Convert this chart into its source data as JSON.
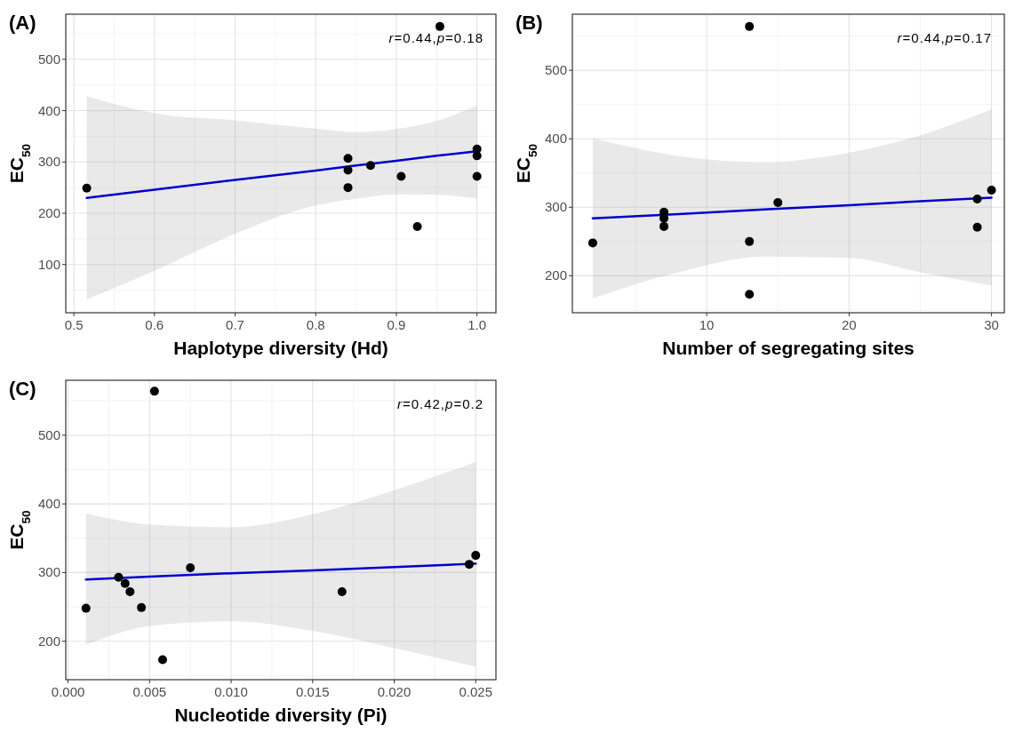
{
  "chart_data": [
    {
      "type": "scatter",
      "title": "(A)",
      "xlabel": "Haplotype diversity (Hd)",
      "ylabel": "EC$_{50}$",
      "annotations": [
        "r=0.44,p=0.18"
      ],
      "xlim": [
        0.49,
        1.0235
      ],
      "xticks": [
        0.5,
        0.6,
        0.7,
        0.8,
        0.9,
        {
          "value": 1.0,
          "label": "1.0"
        }
      ],
      "ylim": [
        6,
        588
      ],
      "yticks": [
        100,
        200,
        300,
        400,
        500
      ],
      "grid": true,
      "series": [
        {
          "marker": "circle",
          "color": "#000000",
          "x": [
            0.516,
            0.84,
            0.84,
            0.84,
            0.868,
            0.906,
            0.926,
            0.954,
            1.0,
            1.0,
            1.0
          ],
          "values": [
            249,
            307,
            284,
            250,
            293,
            272,
            174,
            564,
            325,
            312,
            272
          ]
        },
        {
          "type": "line",
          "color": "#0000cc",
          "x": [
            0.516,
            0.6,
            0.7,
            0.8,
            0.85,
            0.9,
            0.95,
            1.0
          ],
          "values": [
            230,
            246,
            265,
            283,
            293,
            302,
            312,
            321
          ],
          "lower": [
            32,
            88,
            160,
            215,
            228,
            237,
            236,
            229
          ],
          "upper": [
            428,
            395,
            381,
            365,
            358,
            364,
            380,
            410
          ]
        }
      ]
    },
    {
      "type": "scatter",
      "title": "(B)",
      "xlabel": "Number of segregating sites",
      "ylabel": "EC$_{50}$",
      "annotations": [
        "r=0.44,p=0.17"
      ],
      "xlim": [
        0.57,
        30.9
      ],
      "xticks": [
        10,
        20,
        30
      ],
      "ylim": [
        146,
        582
      ],
      "yticks": [
        200,
        300,
        400,
        500
      ],
      "grid": true,
      "series": [
        {
          "marker": "circle",
          "color": "#000000",
          "x": [
            2,
            7,
            7,
            7,
            13,
            13,
            13,
            15,
            29,
            29,
            30
          ],
          "values": [
            248,
            293,
            284,
            272,
            564,
            250,
            173,
            307,
            312,
            271,
            325
          ]
        },
        {
          "type": "line",
          "color": "#0000cc",
          "x": [
            2,
            8,
            14,
            20,
            25,
            30
          ],
          "values": [
            284,
            290,
            297,
            303,
            309,
            314
          ],
          "lower": [
            167,
            205,
            228,
            226,
            205,
            186
          ],
          "upper": [
            401,
            375,
            366,
            380,
            405,
            443
          ]
        }
      ]
    },
    {
      "type": "scatter",
      "title": "(C)",
      "xlabel": "Nucleotide diversity (Pi)",
      "ylabel": "EC$_{50}$",
      "annotations": [
        "r=0.42,p=0.2"
      ],
      "xlim": [
        -0.00014,
        0.02624
      ],
      "xticks": [
        {
          "value": 0,
          "label": "0.000"
        },
        0.005,
        {
          "value": 0.01,
          "label": "0.010"
        },
        0.015,
        {
          "value": 0.02,
          "label": "0.020"
        },
        0.025
      ],
      "ylim": [
        144,
        580
      ],
      "yticks": [
        200,
        300,
        400,
        500
      ],
      "grid": true,
      "series": [
        {
          "marker": "circle",
          "color": "#000000",
          "x": [
            0.0011,
            0.0031,
            0.0035,
            0.0038,
            0.0045,
            0.0053,
            0.0058,
            0.0075,
            0.0168,
            0.0246,
            0.025
          ],
          "values": [
            248,
            293,
            284,
            272,
            249,
            564,
            173,
            307,
            272,
            312,
            325
          ]
        },
        {
          "type": "line",
          "color": "#0000cc",
          "x": [
            0.0011,
            0.005,
            0.01,
            0.015,
            0.02,
            0.025
          ],
          "values": [
            290,
            294,
            299,
            303,
            308,
            313
          ],
          "lower": [
            195,
            222,
            229,
            215,
            190,
            163
          ],
          "upper": [
            386,
            370,
            366,
            385,
            420,
            461
          ]
        }
      ]
    }
  ]
}
